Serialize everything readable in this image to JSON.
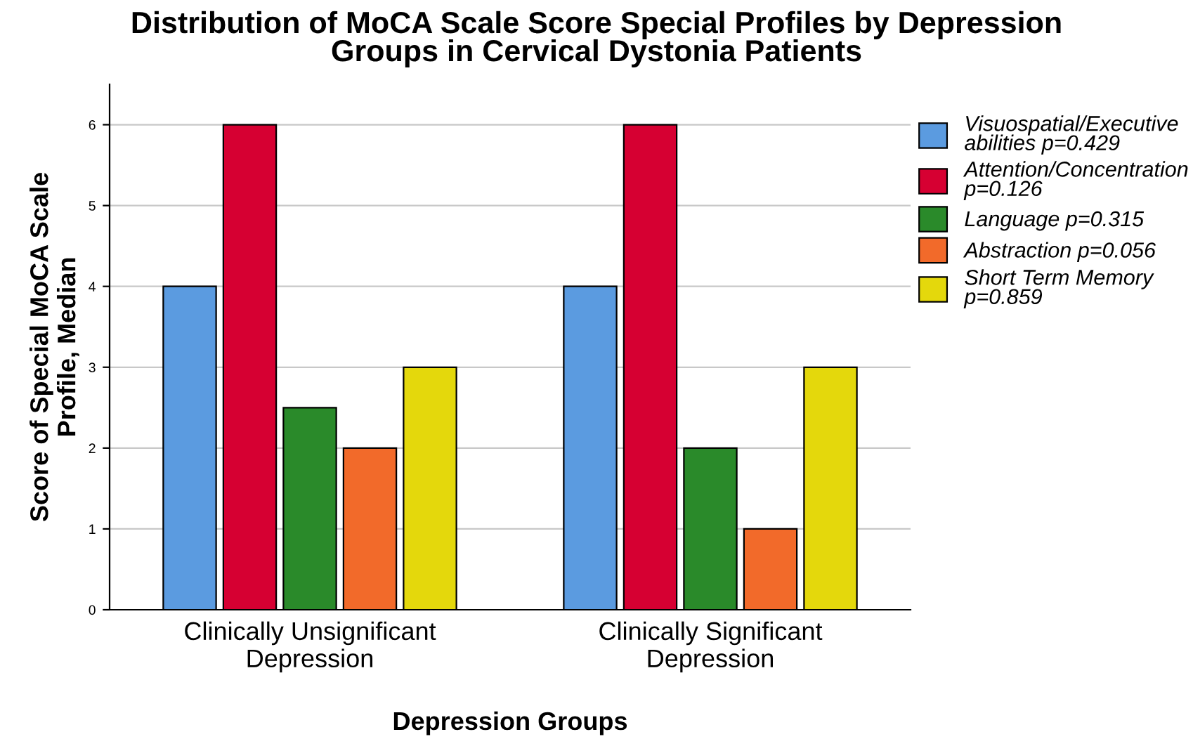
{
  "chart_data": {
    "type": "bar",
    "title": "Distribution of MoCA Scale Score Special Profiles by Depression\nGroups in Cervical Dystonia Patients",
    "xlabel": "Depression Groups",
    "ylabel": "Score of Special MoCA Scale\nProfile, Median",
    "categories": [
      "Clinically Unsignificant\nDepression",
      "Clinically Significant\nDepression"
    ],
    "series": [
      {
        "name": "Visuospatial/Executive\nabilities p=0.429",
        "color": "#5b9be0",
        "values": [
          4,
          4
        ]
      },
      {
        "name": "Attention/Concentration\np=0.126",
        "color": "#d60032",
        "values": [
          6,
          6
        ]
      },
      {
        "name": "Language p=0.315",
        "color": "#2a8a2a",
        "values": [
          2.5,
          2
        ]
      },
      {
        "name": "Abstraction p=0.056",
        "color": "#f26a2a",
        "values": [
          2,
          1
        ]
      },
      {
        "name": "Short Term Memory\np=0.859",
        "color": "#e4d80c",
        "values": [
          3,
          3
        ]
      }
    ],
    "ylim": [
      0,
      6.5
    ],
    "yticks": [
      0,
      1,
      2,
      3,
      4,
      5,
      6
    ],
    "grid": "y",
    "legend": "top right"
  }
}
